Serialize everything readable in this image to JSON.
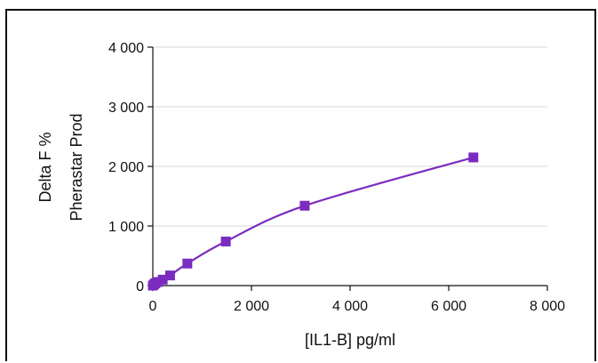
{
  "chart_data": {
    "type": "scatter",
    "xlabel": "[IL1-B] pg/ml",
    "ylabel_lines": [
      "Delta F %",
      "Pherastar Prod"
    ],
    "xlim": [
      0,
      8000
    ],
    "ylim": [
      0,
      4000
    ],
    "x_ticks": [
      0,
      2000,
      4000,
      6000,
      8000
    ],
    "x_tick_labels": [
      "0",
      "2 000",
      "4 000",
      "6 000",
      "8 000"
    ],
    "y_ticks": [
      0,
      1000,
      2000,
      3000,
      4000
    ],
    "y_tick_labels": [
      "0",
      "1 000",
      "2 000",
      "3 000",
      "4 000"
    ],
    "grid": "horizontal",
    "series": [
      {
        "x": [
          0,
          25,
          50,
          100,
          200,
          350,
          700,
          1480,
          3080,
          6500
        ],
        "y": [
          0,
          20,
          40,
          60,
          100,
          170,
          370,
          740,
          1340,
          2150
        ],
        "marker": "square",
        "color": "#7b2cbf",
        "fit_curve": true
      }
    ]
  }
}
